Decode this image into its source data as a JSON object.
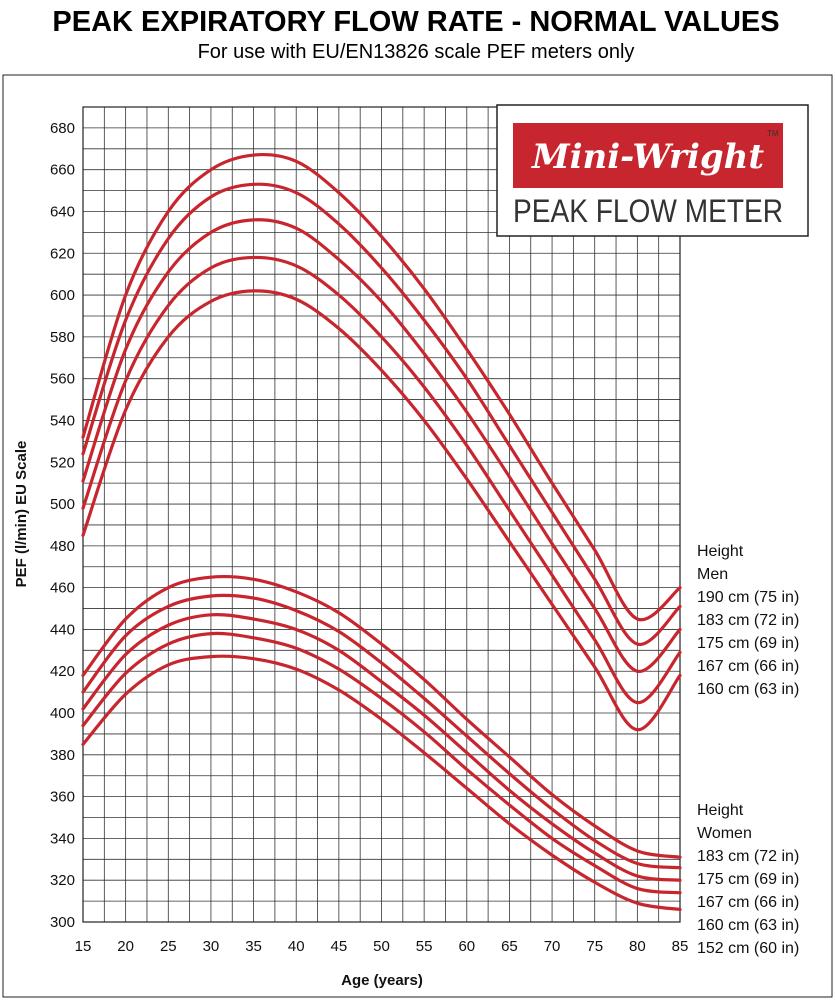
{
  "chart_data": {
    "type": "line",
    "title": "PEAK EXPIRATORY FLOW RATE - NORMAL VALUES",
    "subtitle": "For use with EU/EN13826 scale PEF meters only",
    "xlabel": "Age (years)",
    "ylabel": "PEF (l/min) EU Scale",
    "xlim": [
      15,
      85
    ],
    "ylim": [
      300,
      690
    ],
    "x_ticks": [
      15,
      20,
      25,
      30,
      35,
      40,
      45,
      50,
      55,
      60,
      65,
      70,
      75,
      80,
      85
    ],
    "y_ticks": [
      300,
      320,
      340,
      360,
      380,
      400,
      420,
      440,
      460,
      480,
      500,
      520,
      540,
      560,
      580,
      600,
      620,
      640,
      660,
      680
    ],
    "grid": true,
    "line_color": "#c8262e",
    "x": [
      15,
      20,
      25,
      30,
      35,
      40,
      45,
      50,
      55,
      60,
      65,
      70,
      75,
      80,
      85
    ],
    "series": [
      {
        "name": "190 cm (75 in)",
        "group": "Men",
        "values": [
          532,
          600,
          640,
          660,
          667,
          664,
          649,
          628,
          603,
          574,
          543,
          510,
          478,
          445,
          460
        ]
      },
      {
        "name": "183 cm (72 in)",
        "group": "Men",
        "values": [
          524,
          588,
          627,
          647,
          653,
          649,
          634,
          613,
          588,
          560,
          528,
          496,
          464,
          433,
          451
        ]
      },
      {
        "name": "175 cm (69 in)",
        "group": "Men",
        "values": [
          511,
          574,
          611,
          630,
          636,
          632,
          617,
          597,
          572,
          544,
          513,
          481,
          450,
          420,
          440
        ]
      },
      {
        "name": "167 cm (66 in)",
        "group": "Men",
        "values": [
          498,
          559,
          595,
          613,
          618,
          614,
          600,
          580,
          556,
          528,
          497,
          466,
          435,
          405,
          429
        ]
      },
      {
        "name": "160 cm (63 in)",
        "group": "Men",
        "values": [
          485,
          545,
          580,
          597,
          602,
          598,
          584,
          564,
          540,
          512,
          482,
          452,
          422,
          392,
          418
        ]
      },
      {
        "name": "183 cm (72 in)",
        "group": "Women",
        "values": [
          418,
          445,
          460,
          465,
          464,
          458,
          448,
          433,
          416,
          397,
          379,
          361,
          346,
          334,
          331
        ]
      },
      {
        "name": "175 cm (69 in)",
        "group": "Women",
        "values": [
          410,
          437,
          451,
          456,
          455,
          449,
          439,
          424,
          407,
          389,
          371,
          354,
          339,
          328,
          326
        ]
      },
      {
        "name": "167 cm (66 in)",
        "group": "Women",
        "values": [
          402,
          428,
          442,
          447,
          445,
          440,
          430,
          415,
          399,
          381,
          363,
          347,
          333,
          322,
          320
        ]
      },
      {
        "name": "160 cm (63 in)",
        "group": "Women",
        "values": [
          394,
          419,
          433,
          438,
          436,
          431,
          421,
          407,
          391,
          373,
          356,
          340,
          327,
          316,
          314
        ]
      },
      {
        "name": "152 cm (60 in)",
        "group": "Women",
        "values": [
          385,
          409,
          423,
          427,
          426,
          421,
          411,
          397,
          381,
          364,
          347,
          332,
          319,
          309,
          306
        ]
      }
    ],
    "legend": {
      "men_heading": [
        "Height",
        "Men"
      ],
      "women_heading": [
        "Height",
        "Women"
      ]
    }
  },
  "logo": {
    "brand": "Mini-Wright",
    "tm": "TM",
    "product": "PEAK FLOW METER",
    "brand_color": "#c8262e"
  }
}
